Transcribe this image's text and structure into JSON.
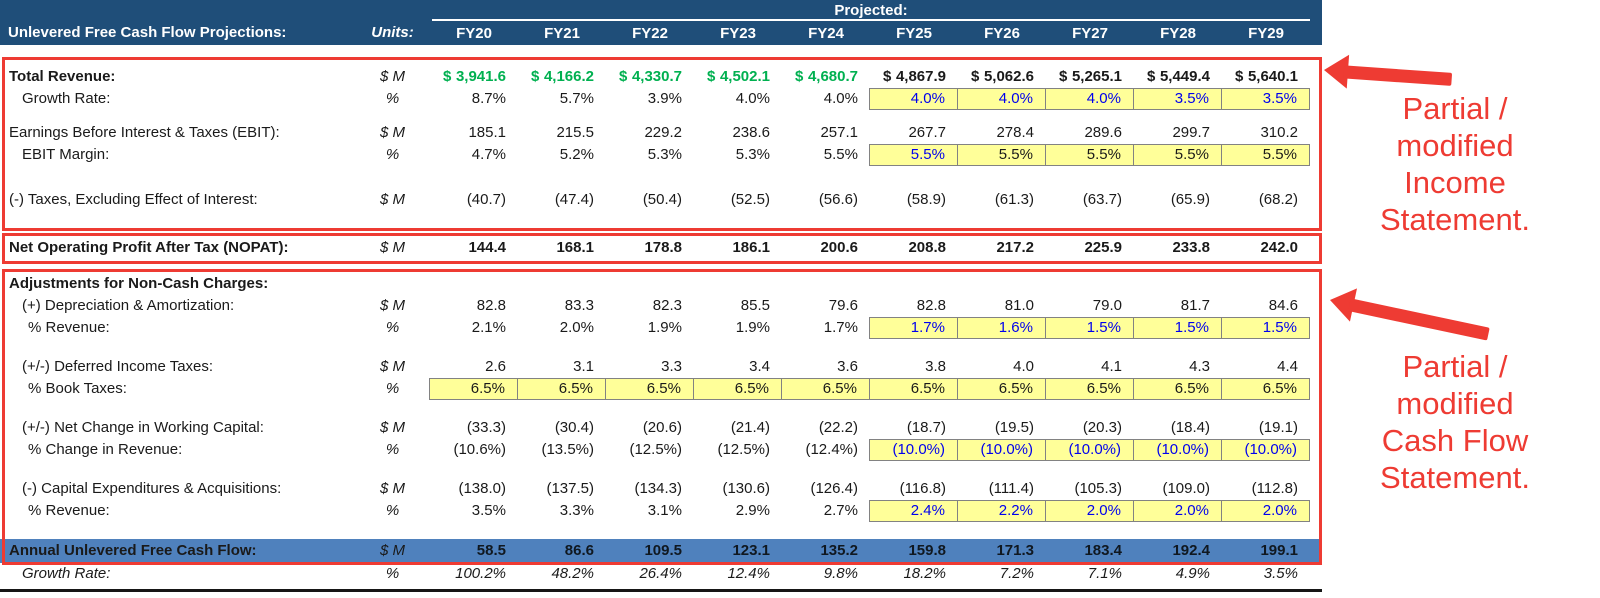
{
  "colors": {
    "header_navy": "#1F4E79",
    "historical_green": "#00B050",
    "input_blue": "#0000EE",
    "input_yellow": "#FFFF99",
    "total_band_blue": "#4F81BD",
    "annotation_red": "#EE3B33"
  },
  "header": {
    "title": "Unlevered Free Cash Flow Projections:",
    "units_label": "Units:",
    "projected_label": "Projected:",
    "years": [
      "FY20",
      "FY21",
      "FY22",
      "FY23",
      "FY24",
      "FY25",
      "FY26",
      "FY27",
      "FY28",
      "FY29"
    ]
  },
  "table": {
    "rows": [
      {
        "name": "row-total-revenue",
        "label": "Total Revenue:",
        "indent": 0,
        "labelBold": true,
        "units": "$ M",
        "valueBold": true,
        "cells": [
          {
            "v": "3,941.6",
            "dollar": true,
            "cls": "green"
          },
          {
            "v": "4,166.2",
            "dollar": true,
            "cls": "green"
          },
          {
            "v": "4,330.7",
            "dollar": true,
            "cls": "green"
          },
          {
            "v": "4,502.1",
            "dollar": true,
            "cls": "green"
          },
          {
            "v": "4,680.7",
            "dollar": true,
            "cls": "green"
          },
          {
            "v": "4,867.9",
            "dollar": true
          },
          {
            "v": "5,062.6",
            "dollar": true
          },
          {
            "v": "5,265.1",
            "dollar": true
          },
          {
            "v": "5,449.4",
            "dollar": true
          },
          {
            "v": "5,640.1",
            "dollar": true
          }
        ]
      },
      {
        "name": "row-revenue-growth-rate",
        "label": "Growth Rate:",
        "indent": 1,
        "units": "%",
        "cells": [
          {
            "v": "8.7%"
          },
          {
            "v": "5.7%"
          },
          {
            "v": "3.9%"
          },
          {
            "v": "4.0%"
          },
          {
            "v": "4.0%"
          },
          {
            "v": "4.0%",
            "cls": "blue",
            "bg": "yellow"
          },
          {
            "v": "4.0%",
            "cls": "blue",
            "bg": "yellow"
          },
          {
            "v": "4.0%",
            "cls": "blue",
            "bg": "yellow"
          },
          {
            "v": "3.5%",
            "cls": "blue",
            "bg": "yellow"
          },
          {
            "v": "3.5%",
            "cls": "blue",
            "bg": "yellow"
          }
        ]
      },
      {
        "name": "row-ebit",
        "label": "Earnings Before Interest & Taxes (EBIT):",
        "indent": 0,
        "units": "$ M",
        "cells": [
          {
            "v": "185.1"
          },
          {
            "v": "215.5"
          },
          {
            "v": "229.2"
          },
          {
            "v": "238.6"
          },
          {
            "v": "257.1"
          },
          {
            "v": "267.7"
          },
          {
            "v": "278.4"
          },
          {
            "v": "289.6"
          },
          {
            "v": "299.7"
          },
          {
            "v": "310.2"
          }
        ]
      },
      {
        "name": "row-ebit-margin",
        "label": "EBIT Margin:",
        "indent": 1,
        "units": "%",
        "cells": [
          {
            "v": "4.7%"
          },
          {
            "v": "5.2%"
          },
          {
            "v": "5.3%"
          },
          {
            "v": "5.3%"
          },
          {
            "v": "5.5%"
          },
          {
            "v": "5.5%",
            "cls": "blue",
            "bg": "yellow"
          },
          {
            "v": "5.5%",
            "bg": "yellow"
          },
          {
            "v": "5.5%",
            "bg": "yellow"
          },
          {
            "v": "5.5%",
            "bg": "yellow"
          },
          {
            "v": "5.5%",
            "bg": "yellow"
          }
        ]
      },
      {
        "name": "row-taxes",
        "label": "(-) Taxes, Excluding Effect of Interest:",
        "indent": 0,
        "units": "$ M",
        "cells": [
          {
            "v": "(40.7)"
          },
          {
            "v": "(47.4)"
          },
          {
            "v": "(50.4)"
          },
          {
            "v": "(52.5)"
          },
          {
            "v": "(56.6)"
          },
          {
            "v": "(58.9)"
          },
          {
            "v": "(61.3)"
          },
          {
            "v": "(63.7)"
          },
          {
            "v": "(65.9)"
          },
          {
            "v": "(68.2)"
          }
        ]
      },
      {
        "name": "row-nopat",
        "label": "Net Operating Profit After Tax (NOPAT):",
        "indent": 0,
        "labelBold": true,
        "units": "$ M",
        "valueBold": true,
        "cells": [
          {
            "v": "144.4"
          },
          {
            "v": "168.1"
          },
          {
            "v": "178.8"
          },
          {
            "v": "186.1"
          },
          {
            "v": "200.6"
          },
          {
            "v": "208.8"
          },
          {
            "v": "217.2"
          },
          {
            "v": "225.9"
          },
          {
            "v": "233.8"
          },
          {
            "v": "242.0"
          }
        ]
      },
      {
        "name": "row-adjustments-header",
        "label": "Adjustments for Non-Cash Charges:",
        "indent": 0,
        "labelBold": true,
        "units": "",
        "cells": []
      },
      {
        "name": "row-depreciation-amortization",
        "label": "(+) Depreciation & Amortization:",
        "indent": 1,
        "units": "$ M",
        "cells": [
          {
            "v": "82.8"
          },
          {
            "v": "83.3"
          },
          {
            "v": "82.3"
          },
          {
            "v": "85.5"
          },
          {
            "v": "79.6"
          },
          {
            "v": "82.8"
          },
          {
            "v": "81.0"
          },
          {
            "v": "79.0"
          },
          {
            "v": "81.7"
          },
          {
            "v": "84.6"
          }
        ]
      },
      {
        "name": "row-da-pct-revenue",
        "label": "% Revenue:",
        "indent": 2,
        "units": "%",
        "cells": [
          {
            "v": "2.1%"
          },
          {
            "v": "2.0%"
          },
          {
            "v": "1.9%"
          },
          {
            "v": "1.9%"
          },
          {
            "v": "1.7%"
          },
          {
            "v": "1.7%",
            "cls": "blue",
            "bg": "yellow"
          },
          {
            "v": "1.6%",
            "cls": "blue",
            "bg": "yellow"
          },
          {
            "v": "1.5%",
            "cls": "blue",
            "bg": "yellow"
          },
          {
            "v": "1.5%",
            "cls": "blue",
            "bg": "yellow"
          },
          {
            "v": "1.5%",
            "cls": "blue",
            "bg": "yellow"
          }
        ]
      },
      {
        "name": "row-deferred-income-taxes",
        "label": "(+/-) Deferred Income Taxes:",
        "indent": 1,
        "units": "$ M",
        "cells": [
          {
            "v": "2.6"
          },
          {
            "v": "3.1"
          },
          {
            "v": "3.3"
          },
          {
            "v": "3.4"
          },
          {
            "v": "3.6"
          },
          {
            "v": "3.8"
          },
          {
            "v": "4.0"
          },
          {
            "v": "4.1"
          },
          {
            "v": "4.3"
          },
          {
            "v": "4.4"
          }
        ]
      },
      {
        "name": "row-pct-book-taxes",
        "label": "% Book Taxes:",
        "indent": 2,
        "units": "%",
        "cells": [
          {
            "v": "6.5%",
            "bg": "yellow"
          },
          {
            "v": "6.5%",
            "bg": "yellow"
          },
          {
            "v": "6.5%",
            "bg": "yellow"
          },
          {
            "v": "6.5%",
            "bg": "yellow"
          },
          {
            "v": "6.5%",
            "bg": "yellow"
          },
          {
            "v": "6.5%",
            "bg": "yellow"
          },
          {
            "v": "6.5%",
            "bg": "yellow"
          },
          {
            "v": "6.5%",
            "bg": "yellow"
          },
          {
            "v": "6.5%",
            "bg": "yellow"
          },
          {
            "v": "6.5%",
            "bg": "yellow"
          }
        ]
      },
      {
        "name": "row-net-change-working-capital",
        "label": "(+/-) Net Change in Working Capital:",
        "indent": 1,
        "units": "$ M",
        "cells": [
          {
            "v": "(33.3)"
          },
          {
            "v": "(30.4)"
          },
          {
            "v": "(20.6)"
          },
          {
            "v": "(21.4)"
          },
          {
            "v": "(22.2)"
          },
          {
            "v": "(18.7)"
          },
          {
            "v": "(19.5)"
          },
          {
            "v": "(20.3)"
          },
          {
            "v": "(18.4)"
          },
          {
            "v": "(19.1)"
          }
        ]
      },
      {
        "name": "row-pct-change-in-revenue",
        "label": "% Change in Revenue:",
        "indent": 2,
        "units": "%",
        "cells": [
          {
            "v": "(10.6%)"
          },
          {
            "v": "(13.5%)"
          },
          {
            "v": "(12.5%)"
          },
          {
            "v": "(12.5%)"
          },
          {
            "v": "(12.4%)"
          },
          {
            "v": "(10.0%)",
            "cls": "blue",
            "bg": "yellow"
          },
          {
            "v": "(10.0%)",
            "cls": "blue",
            "bg": "yellow"
          },
          {
            "v": "(10.0%)",
            "cls": "blue",
            "bg": "yellow"
          },
          {
            "v": "(10.0%)",
            "cls": "blue",
            "bg": "yellow"
          },
          {
            "v": "(10.0%)",
            "cls": "blue",
            "bg": "yellow"
          }
        ]
      },
      {
        "name": "row-capex",
        "label": "(-) Capital Expenditures & Acquisitions:",
        "indent": 1,
        "units": "$ M",
        "cells": [
          {
            "v": "(138.0)"
          },
          {
            "v": "(137.5)"
          },
          {
            "v": "(134.3)"
          },
          {
            "v": "(130.6)"
          },
          {
            "v": "(126.4)"
          },
          {
            "v": "(116.8)"
          },
          {
            "v": "(111.4)"
          },
          {
            "v": "(105.3)"
          },
          {
            "v": "(109.0)"
          },
          {
            "v": "(112.8)"
          }
        ]
      },
      {
        "name": "row-capex-pct-revenue",
        "label": "% Revenue:",
        "indent": 2,
        "units": "%",
        "cells": [
          {
            "v": "3.5%"
          },
          {
            "v": "3.3%"
          },
          {
            "v": "3.1%"
          },
          {
            "v": "2.9%"
          },
          {
            "v": "2.7%"
          },
          {
            "v": "2.4%",
            "cls": "blue",
            "bg": "yellow"
          },
          {
            "v": "2.2%",
            "cls": "blue",
            "bg": "yellow"
          },
          {
            "v": "2.0%",
            "cls": "blue",
            "bg": "yellow"
          },
          {
            "v": "2.0%",
            "cls": "blue",
            "bg": "yellow"
          },
          {
            "v": "2.0%",
            "cls": "blue",
            "bg": "yellow"
          }
        ]
      },
      {
        "name": "row-annual-ufcf",
        "label": "Annual Unlevered Free Cash Flow:",
        "indent": 0,
        "labelBold": true,
        "units": "$ M",
        "valueBold": true,
        "band": "blue",
        "cells": [
          {
            "v": "58.5"
          },
          {
            "v": "86.6"
          },
          {
            "v": "109.5"
          },
          {
            "v": "123.1"
          },
          {
            "v": "135.2"
          },
          {
            "v": "159.8"
          },
          {
            "v": "171.3"
          },
          {
            "v": "183.4"
          },
          {
            "v": "192.4"
          },
          {
            "v": "199.1"
          }
        ]
      },
      {
        "name": "row-ufcf-growth-rate",
        "label": "Growth Rate:",
        "indent": 1,
        "labelItalic": true,
        "units": "%",
        "valueItalic": true,
        "cells": [
          {
            "v": "100.2%"
          },
          {
            "v": "48.2%"
          },
          {
            "v": "26.4%"
          },
          {
            "v": "12.4%"
          },
          {
            "v": "9.8%"
          },
          {
            "v": "18.2%"
          },
          {
            "v": "7.2%"
          },
          {
            "v": "7.1%"
          },
          {
            "v": "4.9%"
          },
          {
            "v": "3.5%"
          }
        ]
      }
    ]
  },
  "annotations": {
    "income": {
      "lines": [
        "Partial /",
        "modified",
        "Income",
        "Statement."
      ]
    },
    "cashflow": {
      "lines": [
        "Partial /",
        "modified",
        "Cash Flow",
        "Statement."
      ]
    }
  }
}
